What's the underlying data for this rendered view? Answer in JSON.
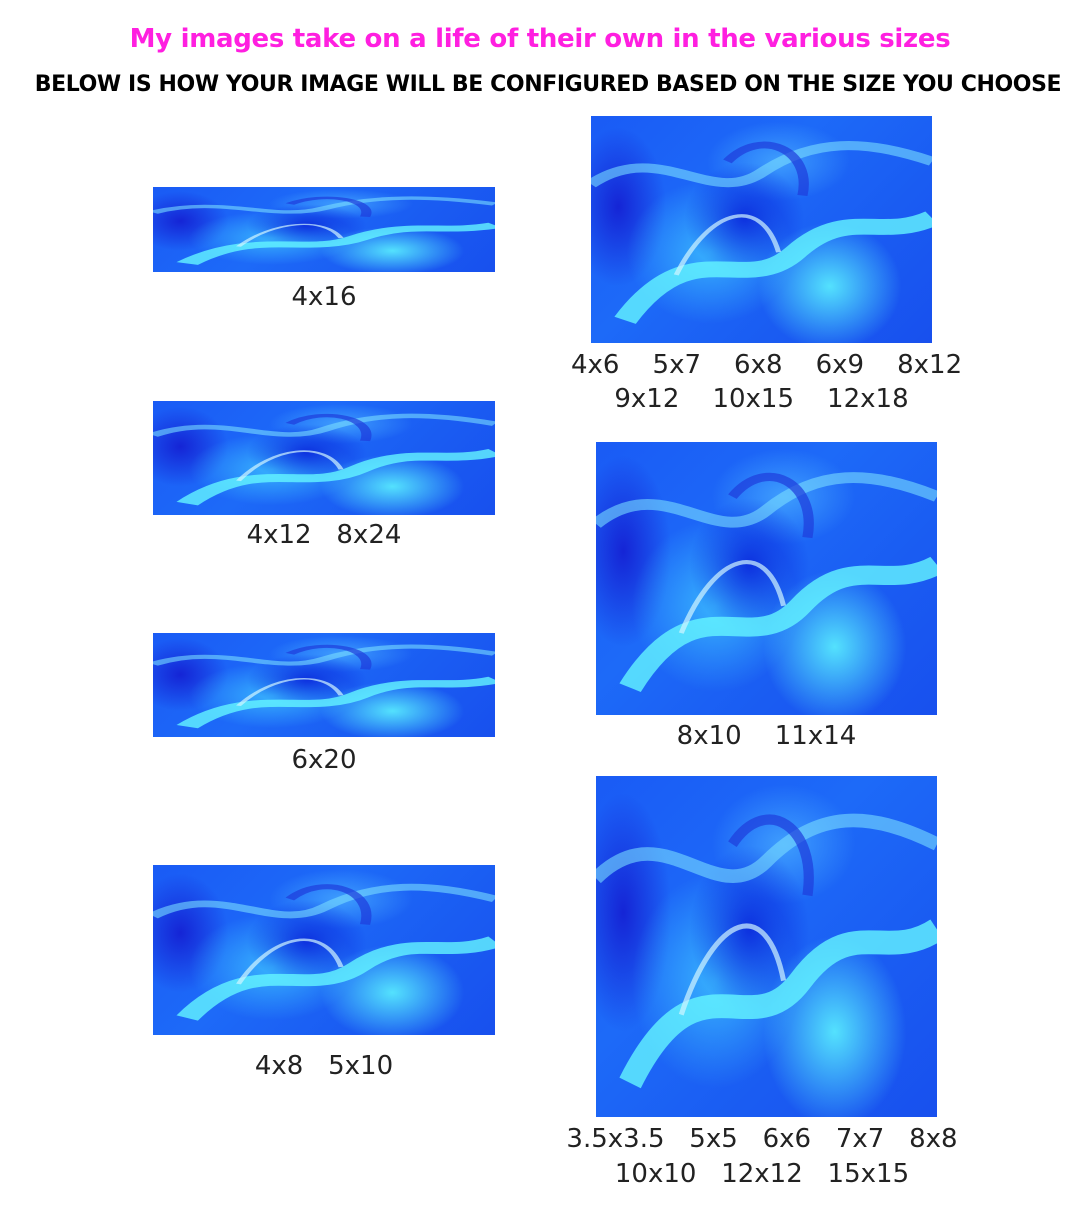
{
  "header": {
    "title": "My images take on a life of their own in the various sizes",
    "subtitle": "BELOW IS HOW YOUR IMAGE WILL BE CONFIGURED BASED ON THE SIZE YOU CHOOSE"
  },
  "colors": {
    "title": "#ff1fe0",
    "subtitle": "#000000",
    "art_base": "#1a5bf5",
    "art_highlight": "#5af0ff"
  },
  "previews": [
    {
      "lines": [
        "4x16"
      ]
    },
    {
      "lines": [
        "4x12   8x24"
      ]
    },
    {
      "lines": [
        "6x20"
      ]
    },
    {
      "lines": [
        "4x8   5x10"
      ]
    },
    {
      "lines": [
        "4x6    5x7    6x8    6x9    8x12",
        "9x12    10x15    12x18"
      ]
    },
    {
      "lines": [
        "8x10    11x14"
      ]
    },
    {
      "lines": [
        "3.5x3.5   5x5   6x6   7x7   8x8",
        "10x10   12x12   15x15"
      ]
    }
  ]
}
